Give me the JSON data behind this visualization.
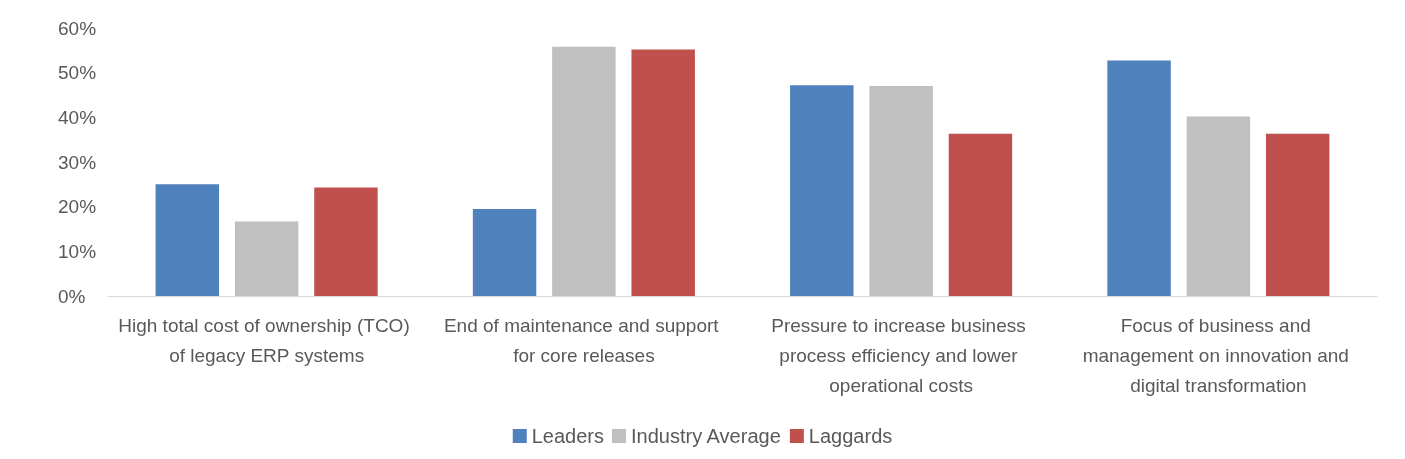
{
  "chart_data": {
    "type": "bar",
    "categories": [
      "High total cost of ownership (TCO) of legacy ERP systems",
      "End of maintenance and support for core releases",
      "Pressure to increase business process efficiency and lower operational costs",
      "Focus of business and management on innovation and digital transformation"
    ],
    "series": [
      {
        "name": "Leaders",
        "color": "#4f81bd",
        "values": [
          25,
          19.5,
          47.2,
          52.7
        ]
      },
      {
        "name": "Industry Average",
        "color": "#c0c0c0",
        "values": [
          16.7,
          55.8,
          47,
          40.2
        ]
      },
      {
        "name": "Laggards",
        "color": "#c0504d",
        "values": [
          24.3,
          55.2,
          36.3,
          36.3
        ]
      }
    ],
    "ylim": [
      0,
      60
    ],
    "yticks": [
      {
        "value": 0,
        "label": "0%"
      },
      {
        "value": 10,
        "label": "10%"
      },
      {
        "value": 20,
        "label": "20%"
      },
      {
        "value": 30,
        "label": "30%"
      },
      {
        "value": 40,
        "label": "40%"
      },
      {
        "value": 50,
        "label": "50%"
      },
      {
        "value": 60,
        "label": "60%"
      }
    ],
    "grid": false,
    "legend": "bottom"
  }
}
